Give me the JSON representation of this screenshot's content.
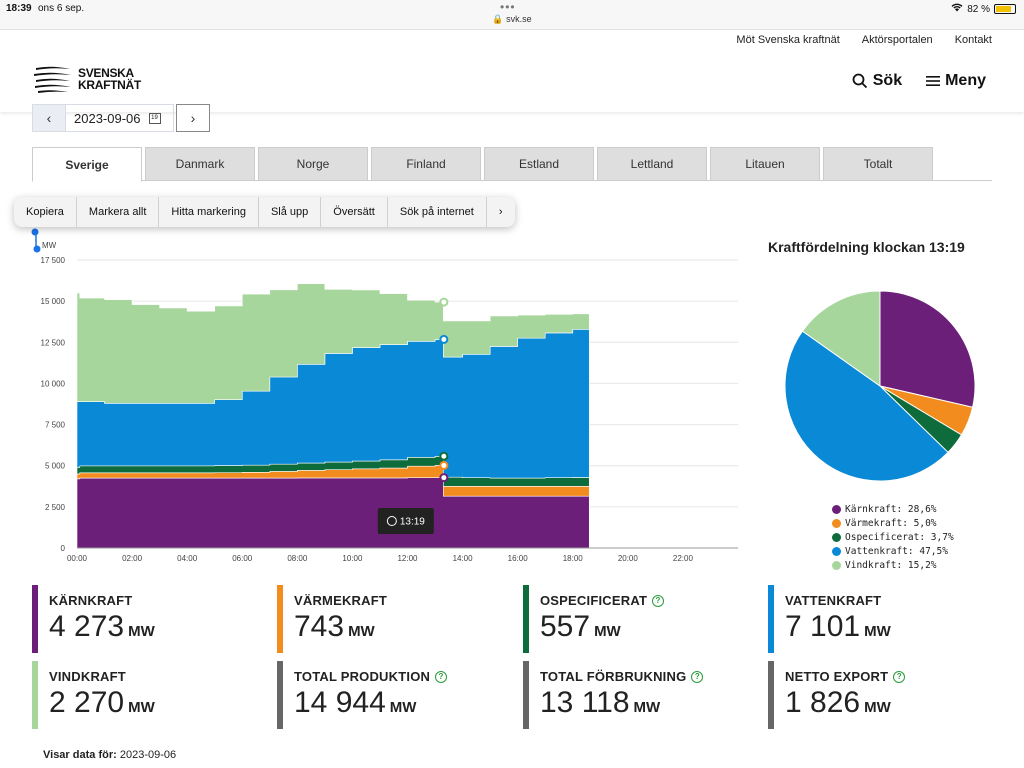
{
  "statusbar": {
    "time": "18:39",
    "date": "ons 6 sep.",
    "url": "svk.se",
    "battery": "82 %"
  },
  "header": {
    "toplinks": [
      "Möt Svenska kraftnät",
      "Aktörsportalen",
      "Kontakt"
    ],
    "logo_line1": "SVENSKA",
    "logo_line2": "KRAFTNÄT",
    "search_label": "Sök",
    "menu_label": "Meny"
  },
  "datenav": {
    "date": "2023-09-06",
    "cal_day": "19"
  },
  "tabs": [
    "Sverige",
    "Danmark",
    "Norge",
    "Finland",
    "Estland",
    "Lettland",
    "Litauen",
    "Totalt"
  ],
  "context_menu": [
    "Kopiera",
    "Markera allt",
    "Hitta markering",
    "Slå upp",
    "Översätt",
    "Sök på internet",
    "›"
  ],
  "chart_data": [
    {
      "type": "area",
      "stacked": true,
      "ylabel": "MW",
      "ylim": [
        0,
        17500
      ],
      "yticks": [
        "0",
        "2 500",
        "5 000",
        "7 500",
        "10 000",
        "12 500",
        "15 000",
        "17 500"
      ],
      "xticks": [
        "00:00",
        "02:00",
        "04:00",
        "06:00",
        "08:00",
        "10:00",
        "12:00",
        "14:00",
        "16:00",
        "18:00",
        "20:00",
        "22:00"
      ],
      "xlim": [
        0,
        24
      ],
      "x": [
        0,
        0.1,
        1,
        2,
        3,
        4,
        5,
        6,
        7,
        8,
        9,
        10,
        11,
        12,
        13,
        13.3,
        14,
        15,
        16,
        17,
        18,
        18.6
      ],
      "series": [
        {
          "name": "Kärnkraft",
          "color": "#6c1f78",
          "values": [
            4200,
            4250,
            4250,
            4250,
            4250,
            4250,
            4250,
            4250,
            4250,
            4260,
            4260,
            4260,
            4260,
            4270,
            4273,
            3150,
            3150,
            3150,
            3150,
            3150,
            3150,
            3150
          ]
        },
        {
          "name": "Värmekraft",
          "color": "#f28c1e",
          "values": [
            300,
            320,
            320,
            320,
            320,
            320,
            330,
            350,
            400,
            450,
            500,
            550,
            600,
            700,
            743,
            600,
            600,
            600,
            600,
            600,
            600,
            600
          ]
        },
        {
          "name": "Ospecificerat",
          "color": "#0d6b3c",
          "values": [
            400,
            420,
            420,
            420,
            420,
            420,
            430,
            430,
            440,
            450,
            460,
            470,
            500,
            540,
            557,
            550,
            520,
            500,
            500,
            520,
            540,
            550
          ]
        },
        {
          "name": "Vattenkraft",
          "color": "#0a89d6",
          "values": [
            4000,
            3900,
            3800,
            3800,
            3800,
            3800,
            4000,
            4500,
            5300,
            6000,
            6600,
            6900,
            7000,
            7050,
            7101,
            7300,
            7500,
            8000,
            8500,
            8800,
            9000,
            9000
          ]
        },
        {
          "name": "Vindkraft",
          "color": "#a7d69c",
          "values": [
            6600,
            6300,
            6300,
            6000,
            5800,
            5600,
            5700,
            5900,
            5300,
            4900,
            3900,
            3500,
            3100,
            2500,
            2270,
            2200,
            2030,
            1850,
            1400,
            1130,
            940,
            900
          ]
        }
      ],
      "tooltip": "13:19"
    },
    {
      "type": "pie",
      "title": "Kraftfördelning klockan 13:19",
      "categories": [
        "Kärnkraft",
        "Värmekraft",
        "Ospecificerat",
        "Vattenkraft",
        "Vindkraft"
      ],
      "values": [
        28.6,
        5.0,
        3.7,
        47.5,
        15.2
      ],
      "colors": [
        "#6c1f78",
        "#f28c1e",
        "#0d6b3c",
        "#0a89d6",
        "#a7d69c"
      ],
      "legend": [
        "Kärnkraft: 28,6%",
        "Värmekraft: 5,0%",
        "Ospecificerat: 3,7%",
        "Vattenkraft: 47,5%",
        "Vindkraft: 15,2%"
      ]
    }
  ],
  "cards": [
    {
      "label": "KÄRNKRAFT",
      "value": "4 273",
      "unit": "MW",
      "color": "#6c1f78",
      "help": false
    },
    {
      "label": "VÄRMEKRAFT",
      "value": "743",
      "unit": "MW",
      "color": "#f28c1e",
      "help": false
    },
    {
      "label": "OSPECIFICERAT",
      "value": "557",
      "unit": "MW",
      "color": "#0d6b3c",
      "help": true
    },
    {
      "label": "VATTENKRAFT",
      "value": "7 101",
      "unit": "MW",
      "color": "#0a89d6",
      "help": false
    },
    {
      "label": "VINDKRAFT",
      "value": "2 270",
      "unit": "MW",
      "color": "#a7d69c",
      "help": false
    },
    {
      "label": "TOTAL PRODUKTION",
      "value": "14 944",
      "unit": "MW",
      "color": "#666666",
      "help": true
    },
    {
      "label": "TOTAL FÖRBRUKNING",
      "value": "13 118",
      "unit": "MW",
      "color": "#666666",
      "help": true
    },
    {
      "label": "NETTO EXPORT",
      "value": "1 826",
      "unit": "MW",
      "color": "#666666",
      "help": true
    }
  ],
  "footer": {
    "label": "Visar data för:",
    "date": "2023-09-06"
  }
}
